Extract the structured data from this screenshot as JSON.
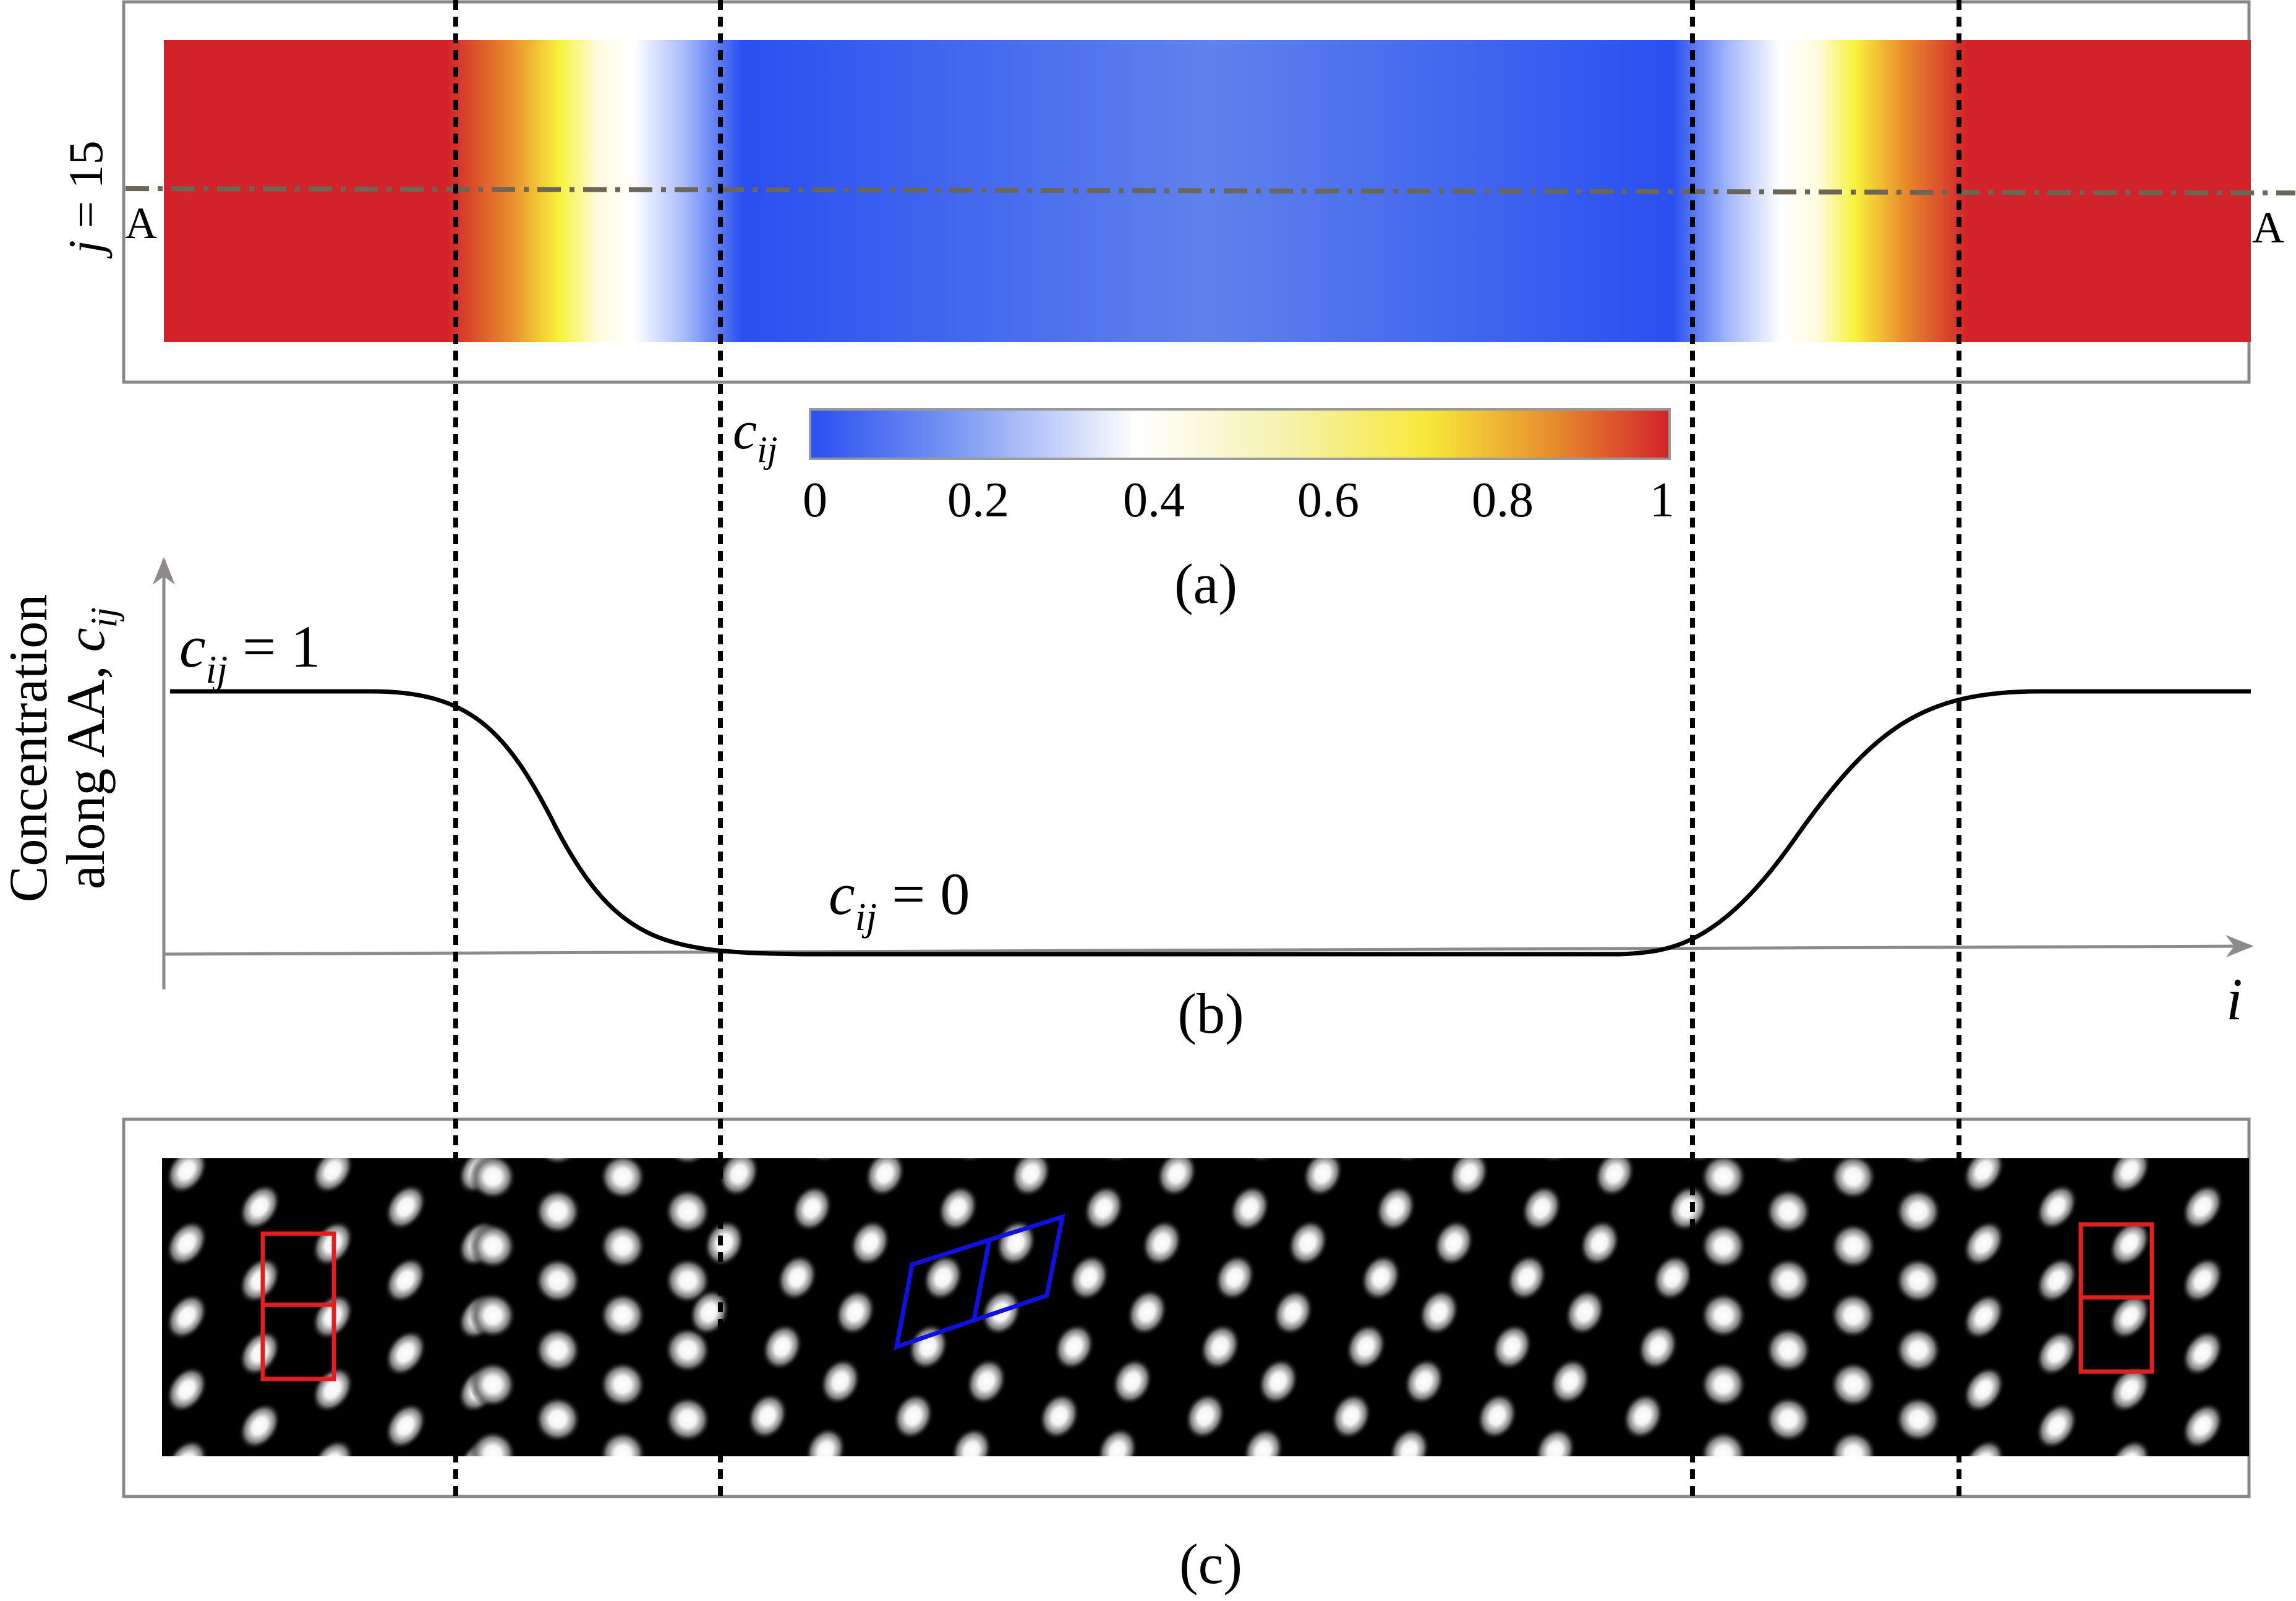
{
  "panel_a": {
    "j_label_var": "j",
    "j_label_rest": " = 15",
    "section_label_left": "A",
    "section_label_right": "A",
    "colorbar": {
      "label_var": "c",
      "label_sub": "ij",
      "ticks": [
        "0",
        "0.2",
        "0.4",
        "0.6",
        "0.8",
        "1"
      ],
      "colors": [
        "#2a4ff0",
        "#ffffff",
        "#f7f03a",
        "#d2232a"
      ]
    },
    "caption": "(a)"
  },
  "panel_b": {
    "ylabel_line1": "Concentration",
    "ylabel_line2_text": "along AA, ",
    "ylabel_line2_var": "c",
    "ylabel_line2_sub": "ij",
    "label_top_var": "c",
    "label_top_sub": "ij",
    "label_top_rest": " = 1",
    "label_bottom_var": "c",
    "label_bottom_sub": "ij",
    "label_bottom_rest": " = 0",
    "xaxis_label": "i",
    "caption": "(b)"
  },
  "panel_c": {
    "caption": "(c)",
    "cell_colors": {
      "red": "#e02020",
      "blue": "#1010e0"
    }
  },
  "colors": {
    "red": "#d2232a",
    "blue": "#2a4ff0",
    "yellow": "#f7f03a",
    "frame": "#888888",
    "dashdot": "#6b6656"
  }
}
